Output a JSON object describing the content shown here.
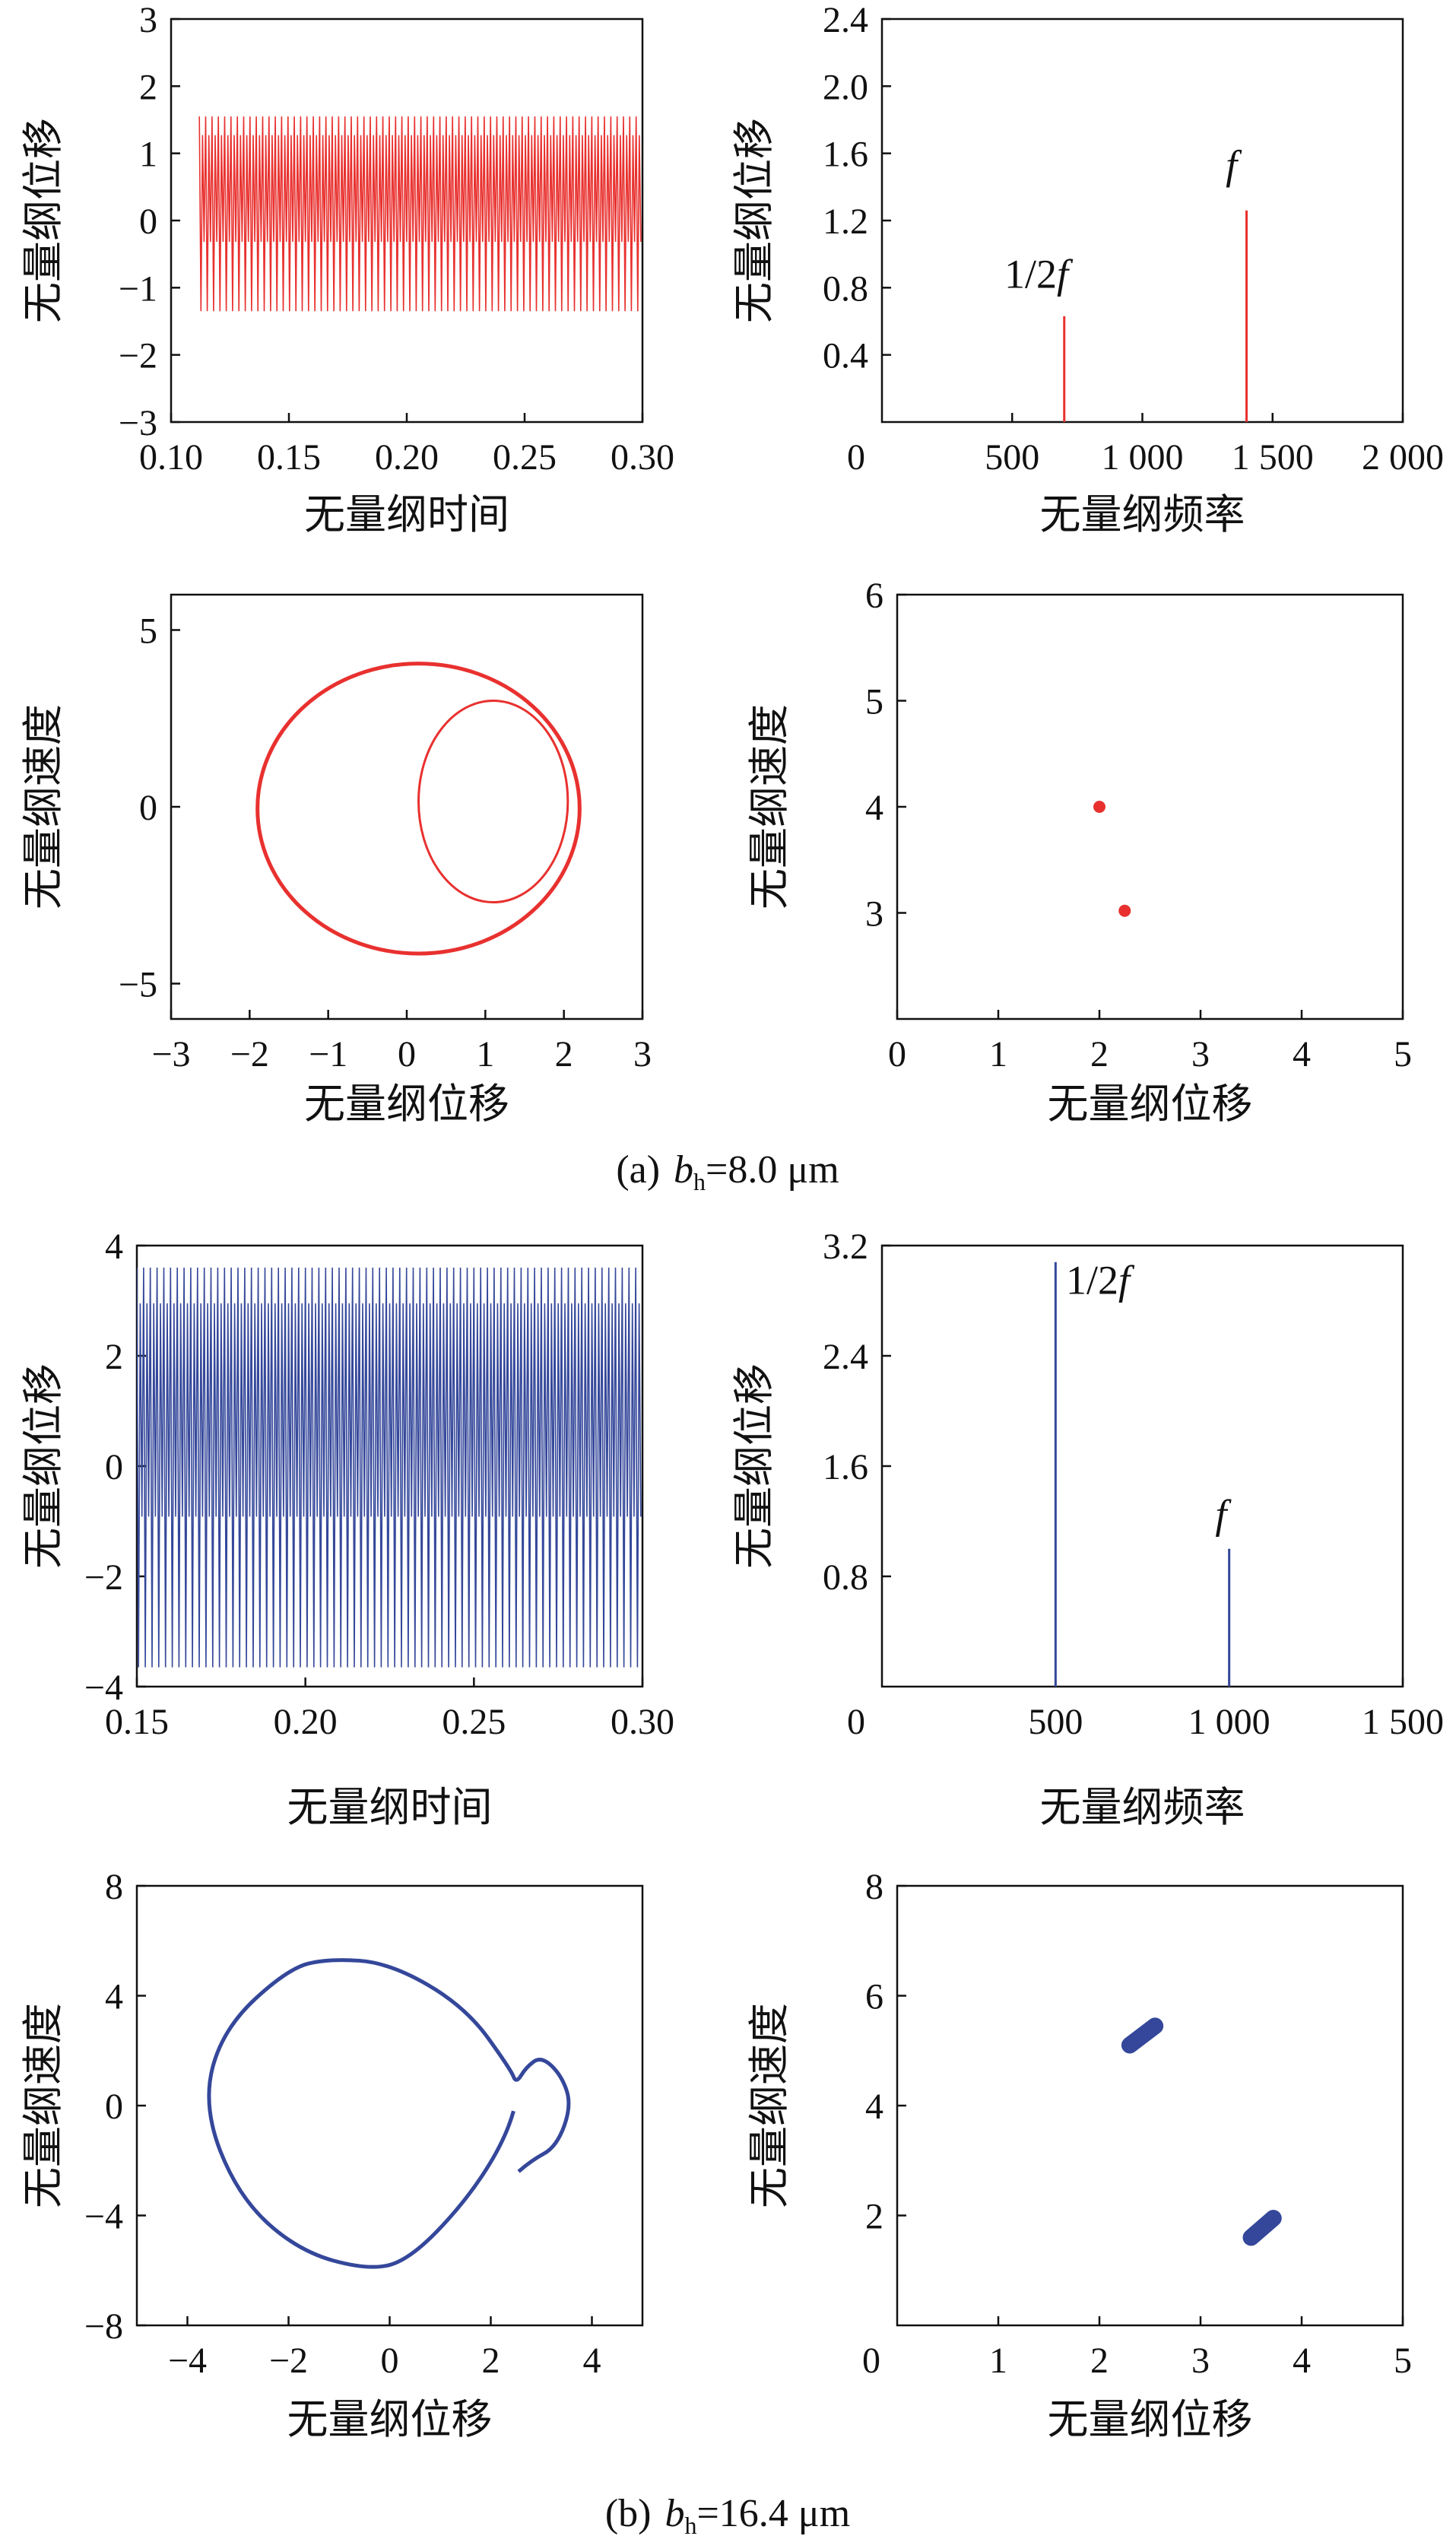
{
  "labels": {
    "displacement": "无量纲位移",
    "time": "无量纲时间",
    "frequency": "无量纲频率",
    "velocity": "无量纲速度"
  },
  "captions": [
    {
      "prefix": "(a)",
      "var": "b",
      "sub": "h",
      "value": "=8.0 μm"
    },
    {
      "prefix": "(b)",
      "var": "b",
      "sub": "h",
      "value": "=16.4 μm"
    }
  ],
  "colors": {
    "case_a": "#e8312f",
    "case_b": "#34479a",
    "axis": "#111111"
  },
  "chart_data": [
    {
      "id": "a-time",
      "type": "line",
      "x_ticks": [
        "0.10",
        "0.15",
        "0.20",
        "0.25",
        "0.30"
      ],
      "y_ticks": [
        "3",
        "2",
        "1",
        "0",
        "-1",
        "-2",
        "-3"
      ],
      "xlim": [
        0.1,
        0.3
      ],
      "ylim": [
        -3,
        3
      ],
      "x": [
        0.112,
        0.3
      ],
      "y_range": [
        -1.35,
        1.55
      ],
      "cycles": 70,
      "xlabel": "无量纲时间",
      "ylabel": "无量纲位移"
    },
    {
      "id": "a-spectrum",
      "type": "line",
      "x_ticks": [
        "500",
        "1 000",
        "1 500",
        "2 000"
      ],
      "y_ticks": [
        "2.4",
        "2.0",
        "1.6",
        "1.2",
        "0.8",
        "0.4"
      ],
      "origin_label": "0",
      "xlim": [
        0,
        2000
      ],
      "ylim": [
        0,
        2.4
      ],
      "peaks": [
        {
          "x": 700,
          "y": 0.63
        },
        {
          "x": 1400,
          "y": 1.26
        }
      ],
      "annotations": [
        {
          "text": "1/2",
          "italic": "f",
          "x": 470,
          "y": 0.8
        },
        {
          "text": "",
          "italic": "f",
          "x": 1320,
          "y": 1.45
        }
      ],
      "xlabel": "无量纲频率",
      "ylabel": "无量纲位移"
    },
    {
      "id": "a-phase",
      "type": "line",
      "x_ticks": [
        "-3",
        "-2",
        "-1",
        "0",
        "1",
        "2",
        "3"
      ],
      "y_ticks": [
        "5",
        "0",
        "-5"
      ],
      "xlim": [
        -3,
        3
      ],
      "ylim": [
        -6,
        6
      ],
      "orbits": [
        {
          "cx": 0.15,
          "cy": -0.05,
          "rx": 2.05,
          "ry": 4.1
        },
        {
          "cx": 1.1,
          "cy": 0.15,
          "rx": 0.95,
          "ry": 2.85
        }
      ],
      "xlabel": "无量纲位移",
      "ylabel": "无量纲速度"
    },
    {
      "id": "a-poincare",
      "type": "scatter",
      "x_ticks": [
        "0",
        "1",
        "2",
        "3",
        "4",
        "5"
      ],
      "y_ticks": [
        "6",
        "5",
        "4",
        "3"
      ],
      "xlim": [
        0,
        5
      ],
      "ylim": [
        2,
        6
      ],
      "points": [
        {
          "x": 2.0,
          "y": 4.0
        },
        {
          "x": 2.25,
          "y": 3.02
        }
      ],
      "xlabel": "无量纲位移",
      "ylabel": "无量纲速度"
    },
    {
      "id": "b-time",
      "type": "line",
      "x_ticks": [
        "0.15",
        "0.20",
        "0.25",
        "0.30"
      ],
      "y_ticks": [
        "4",
        "2",
        "0",
        "-2",
        "-4"
      ],
      "xlim": [
        0.15,
        0.3
      ],
      "ylim": [
        -4,
        4
      ],
      "x": [
        0.15,
        0.3
      ],
      "y_range": [
        -3.65,
        3.6
      ],
      "cycles": 75,
      "xlabel": "无量纲时间",
      "ylabel": "无量纲位移"
    },
    {
      "id": "b-spectrum",
      "type": "line",
      "x_ticks": [
        "500",
        "1 000",
        "1 500"
      ],
      "y_ticks": [
        "3.2",
        "2.4",
        "1.6",
        "0.8"
      ],
      "origin_label": "0",
      "xlim": [
        0,
        1500
      ],
      "ylim": [
        0,
        3.2
      ],
      "peaks": [
        {
          "x": 500,
          "y": 3.08
        },
        {
          "x": 1000,
          "y": 1.0
        }
      ],
      "annotations": [
        {
          "text": "1/2",
          "italic": "f",
          "x": 530,
          "y": 2.85
        },
        {
          "text": "",
          "italic": "f",
          "x": 960,
          "y": 1.15
        }
      ],
      "xlabel": "无量纲频率",
      "ylabel": "无量纲位移"
    },
    {
      "id": "b-phase",
      "type": "line",
      "x_ticks": [
        "-4",
        "-2",
        "0",
        "2",
        "4"
      ],
      "y_ticks": [
        "8",
        "4",
        "0",
        "-4",
        "-8"
      ],
      "xlim": [
        -5,
        5
      ],
      "ylim": [
        -8,
        8
      ],
      "curve": [
        [
          2.45,
          -0.2
        ],
        [
          2.3,
          -1.2
        ],
        [
          1.5,
          -3.5
        ],
        [
          0.4,
          -5.6
        ],
        [
          -0.4,
          -6.0
        ],
        [
          -1.8,
          -5.3
        ],
        [
          -3.0,
          -3.3
        ],
        [
          -3.7,
          0.0
        ],
        [
          -3.3,
          2.8
        ],
        [
          -2.0,
          5.0
        ],
        [
          -1.2,
          5.35
        ],
        [
          0.0,
          5.2
        ],
        [
          1.5,
          3.6
        ],
        [
          2.4,
          1.3
        ],
        [
          2.5,
          0.8
        ],
        [
          2.7,
          1.4
        ],
        [
          3.0,
          1.8
        ],
        [
          3.4,
          1.1
        ],
        [
          3.6,
          0.0
        ],
        [
          3.3,
          -1.5
        ],
        [
          2.8,
          -2.0
        ],
        [
          2.3,
          -2.8
        ]
      ],
      "xlabel": "无量纲位移",
      "ylabel": "无量纲速度"
    },
    {
      "id": "b-poincare",
      "type": "scatter",
      "x_ticks": [
        "1",
        "2",
        "3",
        "4",
        "5"
      ],
      "y_ticks": [
        "8",
        "6",
        "4",
        "2"
      ],
      "origin_label": "0",
      "xlim": [
        0,
        5
      ],
      "ylim": [
        0,
        8
      ],
      "clusters": [
        {
          "x0": 2.3,
          "y0": 5.1,
          "x1": 2.55,
          "y1": 5.45
        },
        {
          "x0": 3.5,
          "y0": 1.6,
          "x1": 3.72,
          "y1": 1.95
        }
      ],
      "xlabel": "无量纲位移",
      "ylabel": "无量纲速度"
    }
  ]
}
